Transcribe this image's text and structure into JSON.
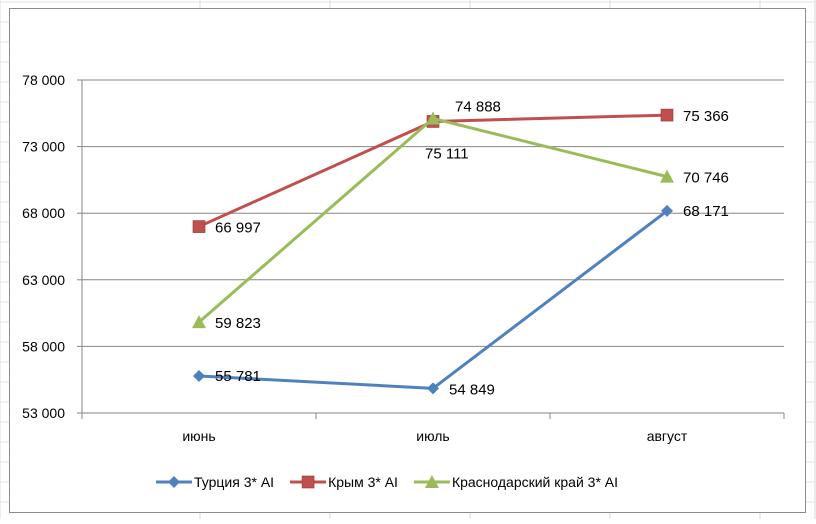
{
  "chart_data": {
    "type": "line",
    "title": "",
    "xlabel": "",
    "ylabel": "",
    "categories": [
      "июнь",
      "июль",
      "август"
    ],
    "ylim": [
      53000,
      78000
    ],
    "yticks": [
      53000,
      58000,
      63000,
      68000,
      73000,
      78000
    ],
    "ytick_labels": [
      "53 000",
      "58 000",
      "63 000",
      "68 000",
      "73 000",
      "78 000"
    ],
    "grid": "horizontal",
    "legend_position": "bottom",
    "series": [
      {
        "name": "Турция 3* AI",
        "color": "#4F81BD",
        "marker": "diamond",
        "values": [
          55781,
          54849,
          68171
        ],
        "labels": [
          "55 781",
          "54 849",
          "68 171"
        ]
      },
      {
        "name": "Крым 3* AI",
        "color": "#C0504D",
        "marker": "square",
        "values": [
          66997,
          74888,
          75366
        ],
        "labels": [
          "66 997",
          "74 888",
          "75 366"
        ]
      },
      {
        "name": "Краснодарский край 3* AI",
        "color": "#9BBB59",
        "marker": "triangle",
        "values": [
          59823,
          75111,
          70746
        ],
        "labels": [
          "59 823",
          "75 111",
          "70 746"
        ]
      }
    ]
  }
}
